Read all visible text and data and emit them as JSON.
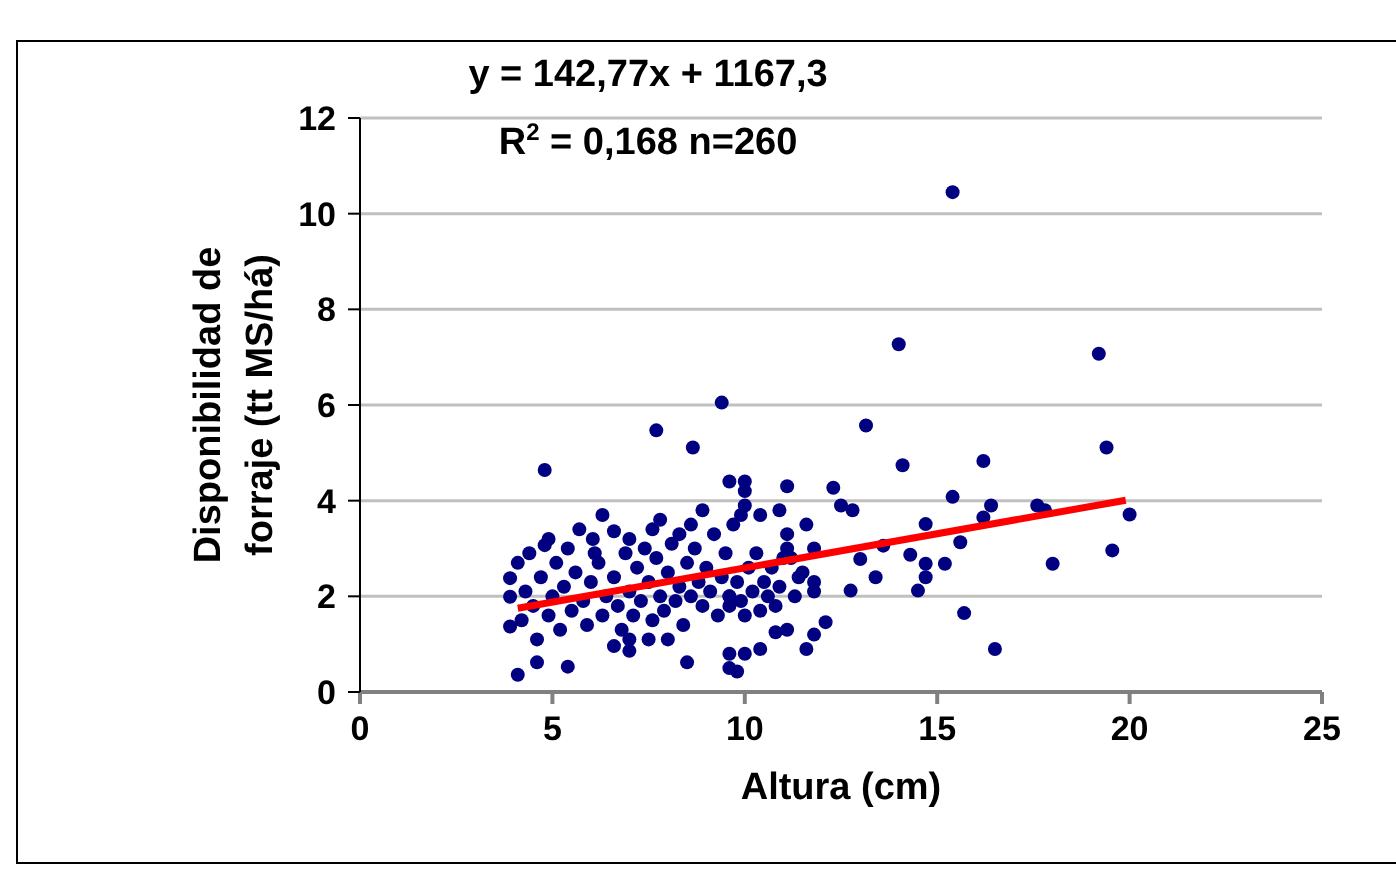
{
  "chart_data": {
    "type": "scatter",
    "xlabel": "Altura (cm)",
    "ylabel": "Disponibilidad de\nforraje (tt MS/há)",
    "annotations": [
      "y = 142,77x + 1167,3",
      "R$^{2}$ = 0,168 n=260"
    ],
    "xlim": [
      0,
      25
    ],
    "xticks": [
      0,
      5,
      10,
      15,
      20,
      25
    ],
    "ylim": [
      0,
      12
    ],
    "yticks": [
      0,
      2,
      4,
      6,
      8,
      10,
      12
    ],
    "grid": "y",
    "marker": "circle",
    "series": [
      {
        "color": "#000080",
        "x": [
          15.4,
          14.0,
          19.2,
          19.4,
          13.15,
          14.1,
          16.2,
          15.4,
          16.4,
          17.6,
          17.8,
          16.2,
          20.0,
          19.55,
          18.0,
          14.7,
          15.6,
          15.2,
          14.7,
          14.7,
          14.5,
          14.3,
          15.7,
          16.5,
          13.6,
          13.4,
          13.0,
          12.75,
          12.3,
          12.5,
          12.8,
          12.1,
          11.8,
          11.6,
          11.6,
          11.8,
          10.9,
          11.1,
          10.4,
          10.0,
          10.0,
          10.0,
          9.4,
          11.1,
          11.1,
          11.8,
          11.8,
          11.4,
          11.2,
          10.8,
          10.8,
          11.1,
          10.4,
          9.8,
          9.6,
          10.0,
          10.4,
          9.6,
          10.0,
          7.7,
          8.65,
          4.8,
          4.1,
          4.6,
          5.4,
          3.9,
          3.9,
          3.9,
          4.1,
          4.6,
          4.8,
          4.9,
          6.3,
          6.05,
          6.6,
          7.0,
          6.6,
          7.0,
          7.0,
          7.5,
          8.0,
          8.5,
          7.6,
          7.8,
          8.3,
          8.9,
          9.6,
          9.6,
          9.6,
          4.2,
          4.3,
          4.5,
          4.7,
          4.9,
          5.0,
          5.1,
          5.2,
          5.3,
          5.5,
          5.6,
          5.8,
          5.9,
          6.0,
          6.2,
          6.3,
          6.4,
          6.6,
          6.7,
          6.8,
          6.9,
          7.0,
          7.1,
          7.2,
          7.3,
          7.4,
          7.5,
          7.6,
          7.7,
          7.8,
          7.9,
          8.0,
          8.1,
          8.2,
          8.3,
          8.4,
          8.5,
          8.6,
          8.7,
          8.8,
          8.9,
          9.0,
          9.1,
          9.2,
          9.3,
          9.4,
          9.5,
          9.6,
          9.7,
          9.8,
          9.9,
          10.1,
          10.2,
          10.3,
          10.5,
          10.6,
          10.7,
          10.9,
          11.0,
          11.3,
          11.5,
          5.4,
          6.1,
          4.4,
          5.7,
          8.6,
          9.9
        ],
        "values": [
          10.45,
          7.27,
          7.07,
          5.11,
          5.57,
          4.74,
          4.83,
          4.08,
          3.9,
          3.9,
          3.8,
          3.65,
          3.71,
          2.96,
          2.68,
          3.51,
          3.13,
          2.68,
          2.68,
          2.4,
          2.12,
          2.87,
          1.65,
          0.9,
          3.06,
          2.4,
          2.78,
          2.12,
          4.27,
          3.9,
          3.8,
          1.46,
          1.2,
          0.9,
          3.5,
          3.0,
          3.8,
          4.3,
          3.7,
          4.4,
          4.2,
          3.9,
          6.05,
          3.3,
          3.0,
          2.3,
          2.1,
          2.4,
          2.8,
          1.8,
          1.25,
          1.3,
          0.9,
          0.43,
          0.8,
          0.8,
          1.7,
          1.8,
          1.6,
          5.47,
          5.11,
          4.64,
          0.36,
          0.62,
          0.53,
          1.37,
          2.38,
          1.99,
          2.7,
          1.1,
          3.07,
          3.2,
          3.7,
          3.2,
          3.36,
          3.2,
          0.96,
          0.86,
          1.1,
          1.1,
          1.1,
          0.62,
          3.4,
          3.6,
          3.3,
          3.8,
          4.4,
          0.5,
          2.0,
          1.5,
          2.1,
          1.8,
          2.4,
          1.6,
          2.0,
          2.7,
          1.3,
          2.2,
          1.7,
          2.5,
          1.9,
          1.4,
          2.3,
          2.7,
          1.6,
          2.0,
          2.4,
          1.8,
          1.3,
          2.9,
          2.1,
          1.6,
          2.6,
          1.9,
          3.0,
          2.3,
          1.5,
          2.8,
          2.0,
          1.7,
          2.5,
          3.1,
          1.9,
          2.2,
          1.4,
          2.7,
          2.0,
          3.0,
          2.3,
          1.8,
          2.6,
          2.1,
          3.3,
          1.6,
          2.4,
          2.9,
          2.0,
          3.5,
          2.3,
          1.9,
          2.6,
          2.1,
          2.9,
          2.3,
          2.0,
          2.6,
          2.2,
          2.8,
          2.0,
          2.5,
          3.0,
          2.9,
          2.9,
          3.4,
          3.5,
          3.7
        ]
      },
      {
        "type": "line",
        "color": "#ff0000",
        "marker": "none",
        "x": [
          4.1,
          19.9
        ],
        "values": [
          1.75,
          4.01
        ]
      }
    ]
  }
}
